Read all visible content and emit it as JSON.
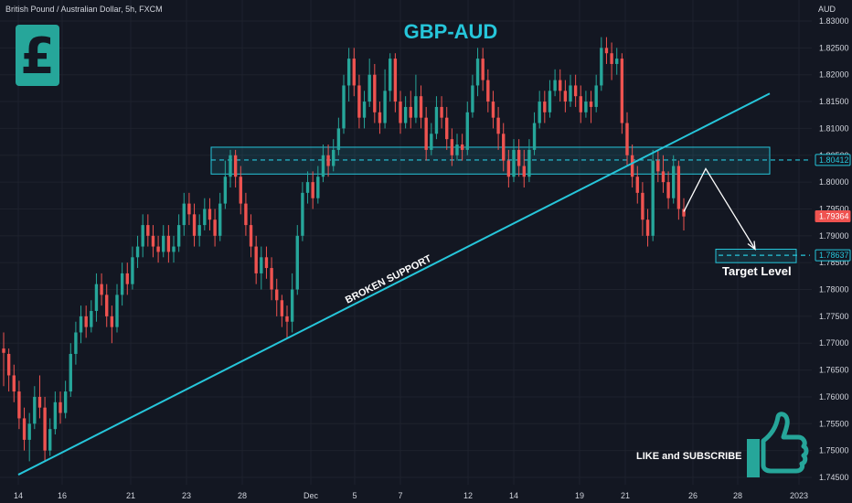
{
  "header": {
    "symbol": "British Pound / Australian Dollar, 5h, FXCM",
    "currency": "AUD"
  },
  "annotations": {
    "title": "GBP-AUD",
    "trendline_label": "BROKEN SUPPORT",
    "target_label": "Target Level",
    "cta": "LIKE and SUBSCRIBE",
    "pound_icon": "pound-sign-icon",
    "thumb_icon": "thumbs-up-icon"
  },
  "colors": {
    "background": "#131722",
    "up": "#26a69a",
    "down": "#ef5350",
    "accent": "#26c6da",
    "text": "#d1d4dc"
  },
  "chart_data": {
    "type": "candlestick",
    "title": "GBP-AUD",
    "x_ticks": [
      "14",
      "16",
      "21",
      "23",
      "28",
      "Dec",
      "5",
      "7",
      "12",
      "14",
      "19",
      "21",
      "26",
      "28",
      "2023"
    ],
    "y_ticks": [
      "1.83000",
      "1.82500",
      "1.82000",
      "1.81500",
      "1.81000",
      "1.80500",
      "1.80000",
      "1.79500",
      "1.79000",
      "1.78500",
      "1.78000",
      "1.77500",
      "1.77000",
      "1.76500",
      "1.76000",
      "1.75500",
      "1.75000",
      "1.74500"
    ],
    "ylim": [
      1.744,
      1.832
    ],
    "price_tags": [
      {
        "value": "1.80412",
        "style": "outline"
      },
      {
        "value": "1.79364",
        "style": "current"
      },
      {
        "value": "1.78637",
        "style": "outline"
      }
    ],
    "resistance_zone": [
      1.8015,
      1.8065
    ],
    "support_level": 1.80412,
    "target_zone": [
      1.785,
      1.7875
    ],
    "target_level": 1.78637,
    "trendline": {
      "from": [
        "14",
        1.7455
      ],
      "to": [
        "28",
        1.8165
      ]
    },
    "projection": {
      "points": [
        1.7945,
        1.8025,
        1.7875
      ]
    },
    "candles": [
      [
        1.769,
        1.7682,
        1.772,
        1.762
      ],
      [
        1.768,
        1.764,
        1.769,
        1.761
      ],
      [
        1.764,
        1.761,
        1.766,
        1.759
      ],
      [
        1.761,
        1.756,
        1.763,
        1.754
      ],
      [
        1.756,
        1.752,
        1.758,
        1.75
      ],
      [
        1.752,
        1.755,
        1.757,
        1.748
      ],
      [
        1.755,
        1.76,
        1.762,
        1.754
      ],
      [
        1.76,
        1.758,
        1.764,
        1.756
      ],
      [
        1.758,
        1.75,
        1.76,
        1.748
      ],
      [
        1.75,
        1.754,
        1.756,
        1.749
      ],
      [
        1.754,
        1.759,
        1.761,
        1.753
      ],
      [
        1.759,
        1.757,
        1.761,
        1.755
      ],
      [
        1.757,
        1.761,
        1.763,
        1.756
      ],
      [
        1.761,
        1.768,
        1.77,
        1.76
      ],
      [
        1.768,
        1.772,
        1.774,
        1.766
      ],
      [
        1.772,
        1.775,
        1.777,
        1.77
      ],
      [
        1.775,
        1.773,
        1.777,
        1.771
      ],
      [
        1.773,
        1.776,
        1.778,
        1.772
      ],
      [
        1.776,
        1.781,
        1.783,
        1.774
      ],
      [
        1.781,
        1.779,
        1.783,
        1.777
      ],
      [
        1.779,
        1.775,
        1.781,
        1.773
      ],
      [
        1.775,
        1.773,
        1.777,
        1.77
      ],
      [
        1.773,
        1.779,
        1.781,
        1.772
      ],
      [
        1.779,
        1.783,
        1.785,
        1.777
      ],
      [
        1.783,
        1.781,
        1.785,
        1.779
      ],
      [
        1.781,
        1.786,
        1.788,
        1.78
      ],
      [
        1.786,
        1.788,
        1.79,
        1.784
      ],
      [
        1.788,
        1.792,
        1.794,
        1.786
      ],
      [
        1.792,
        1.79,
        1.794,
        1.788
      ],
      [
        1.79,
        1.788,
        1.792,
        1.786
      ],
      [
        1.788,
        1.787,
        1.79,
        1.785
      ],
      [
        1.787,
        1.79,
        1.792,
        1.786
      ],
      [
        1.79,
        1.787,
        1.792,
        1.785
      ],
      [
        1.787,
        1.788,
        1.79,
        1.785
      ],
      [
        1.788,
        1.792,
        1.794,
        1.787
      ],
      [
        1.792,
        1.796,
        1.798,
        1.79
      ],
      [
        1.796,
        1.794,
        1.798,
        1.792
      ],
      [
        1.794,
        1.79,
        1.796,
        1.788
      ],
      [
        1.79,
        1.792,
        1.794,
        1.788
      ],
      [
        1.792,
        1.795,
        1.797,
        1.791
      ],
      [
        1.795,
        1.793,
        1.797,
        1.791
      ],
      [
        1.793,
        1.79,
        1.795,
        1.788
      ],
      [
        1.79,
        1.796,
        1.798,
        1.789
      ],
      [
        1.796,
        1.801,
        1.804,
        1.795
      ],
      [
        1.801,
        1.805,
        1.806,
        1.799
      ],
      [
        1.805,
        1.801,
        1.806,
        1.799
      ],
      [
        1.801,
        1.796,
        1.803,
        1.794
      ],
      [
        1.796,
        1.792,
        1.798,
        1.79
      ],
      [
        1.792,
        1.788,
        1.794,
        1.786
      ],
      [
        1.788,
        1.783,
        1.79,
        1.781
      ],
      [
        1.783,
        1.786,
        1.788,
        1.78
      ],
      [
        1.786,
        1.784,
        1.788,
        1.782
      ],
      [
        1.784,
        1.78,
        1.786,
        1.778
      ],
      [
        1.78,
        1.778,
        1.782,
        1.775
      ],
      [
        1.778,
        1.775,
        1.779,
        1.773
      ],
      [
        1.775,
        1.774,
        1.777,
        1.771
      ],
      [
        1.774,
        1.78,
        1.783,
        1.772
      ],
      [
        1.78,
        1.79,
        1.792,
        1.779
      ],
      [
        1.79,
        1.798,
        1.8,
        1.789
      ],
      [
        1.798,
        1.8,
        1.802,
        1.796
      ],
      [
        1.8,
        1.797,
        1.802,
        1.795
      ],
      [
        1.797,
        1.801,
        1.803,
        1.796
      ],
      [
        1.801,
        1.805,
        1.807,
        1.8
      ],
      [
        1.805,
        1.803,
        1.807,
        1.801
      ],
      [
        1.803,
        1.806,
        1.808,
        1.802
      ],
      [
        1.806,
        1.81,
        1.812,
        1.805
      ],
      [
        1.81,
        1.818,
        1.82,
        1.809
      ],
      [
        1.818,
        1.823,
        1.825,
        1.815
      ],
      [
        1.823,
        1.818,
        1.825,
        1.816
      ],
      [
        1.818,
        1.812,
        1.82,
        1.81
      ],
      [
        1.812,
        1.815,
        1.817,
        1.81
      ],
      [
        1.815,
        1.82,
        1.823,
        1.814
      ],
      [
        1.82,
        1.813,
        1.822,
        1.811
      ],
      [
        1.813,
        1.811,
        1.815,
        1.809
      ],
      [
        1.811,
        1.817,
        1.821,
        1.81
      ],
      [
        1.817,
        1.823,
        1.824,
        1.815
      ],
      [
        1.823,
        1.815,
        1.824,
        1.813
      ],
      [
        1.815,
        1.811,
        1.817,
        1.809
      ],
      [
        1.811,
        1.814,
        1.816,
        1.81
      ],
      [
        1.814,
        1.812,
        1.817,
        1.81
      ],
      [
        1.812,
        1.816,
        1.82,
        1.811
      ],
      [
        1.816,
        1.812,
        1.818,
        1.81
      ],
      [
        1.812,
        1.806,
        1.814,
        1.804
      ],
      [
        1.806,
        1.809,
        1.811,
        1.805
      ],
      [
        1.809,
        1.814,
        1.816,
        1.808
      ],
      [
        1.814,
        1.812,
        1.816,
        1.81
      ],
      [
        1.812,
        1.808,
        1.814,
        1.806
      ],
      [
        1.808,
        1.805,
        1.81,
        1.803
      ],
      [
        1.805,
        1.807,
        1.809,
        1.804
      ],
      [
        1.807,
        1.806,
        1.809,
        1.804
      ],
      [
        1.806,
        1.813,
        1.815,
        1.805
      ],
      [
        1.813,
        1.818,
        1.82,
        1.812
      ],
      [
        1.818,
        1.823,
        1.825,
        1.816
      ],
      [
        1.823,
        1.819,
        1.825,
        1.817
      ],
      [
        1.819,
        1.815,
        1.821,
        1.813
      ],
      [
        1.815,
        1.812,
        1.817,
        1.81
      ],
      [
        1.812,
        1.809,
        1.814,
        1.806
      ],
      [
        1.809,
        1.804,
        1.811,
        1.802
      ],
      [
        1.804,
        1.801,
        1.806,
        1.799
      ],
      [
        1.801,
        1.806,
        1.808,
        1.8
      ],
      [
        1.806,
        1.803,
        1.808,
        1.801
      ],
      [
        1.803,
        1.801,
        1.806,
        1.799
      ],
      [
        1.801,
        1.806,
        1.808,
        1.8
      ],
      [
        1.806,
        1.811,
        1.813,
        1.805
      ],
      [
        1.811,
        1.815,
        1.817,
        1.81
      ],
      [
        1.815,
        1.813,
        1.817,
        1.811
      ],
      [
        1.813,
        1.817,
        1.819,
        1.812
      ],
      [
        1.817,
        1.819,
        1.821,
        1.816
      ],
      [
        1.819,
        1.817,
        1.821,
        1.815
      ],
      [
        1.817,
        1.815,
        1.819,
        1.813
      ],
      [
        1.815,
        1.818,
        1.82,
        1.814
      ],
      [
        1.818,
        1.816,
        1.82,
        1.814
      ],
      [
        1.816,
        1.813,
        1.818,
        1.811
      ],
      [
        1.813,
        1.815,
        1.817,
        1.812
      ],
      [
        1.815,
        1.814,
        1.817,
        1.811
      ],
      [
        1.814,
        1.818,
        1.82,
        1.813
      ],
      [
        1.818,
        1.825,
        1.827,
        1.817
      ],
      [
        1.825,
        1.824,
        1.827,
        1.822
      ],
      [
        1.824,
        1.822,
        1.826,
        1.819
      ],
      [
        1.822,
        1.823,
        1.825,
        1.82
      ],
      [
        1.823,
        1.811,
        1.824,
        1.809
      ],
      [
        1.811,
        1.805,
        1.813,
        1.803
      ],
      [
        1.805,
        1.801,
        1.807,
        1.799
      ],
      [
        1.801,
        1.798,
        1.803,
        1.796
      ],
      [
        1.798,
        1.793,
        1.8,
        1.79
      ],
      [
        1.793,
        1.79,
        1.795,
        1.788
      ],
      [
        1.79,
        1.804,
        1.806,
        1.789
      ],
      [
        1.804,
        1.802,
        1.806,
        1.8
      ],
      [
        1.802,
        1.8,
        1.805,
        1.798
      ],
      [
        1.8,
        1.797,
        1.802,
        1.795
      ],
      [
        1.797,
        1.803,
        1.805,
        1.796
      ],
      [
        1.803,
        1.795,
        1.804,
        1.793
      ],
      [
        1.795,
        1.7936,
        1.797,
        1.791
      ]
    ]
  }
}
